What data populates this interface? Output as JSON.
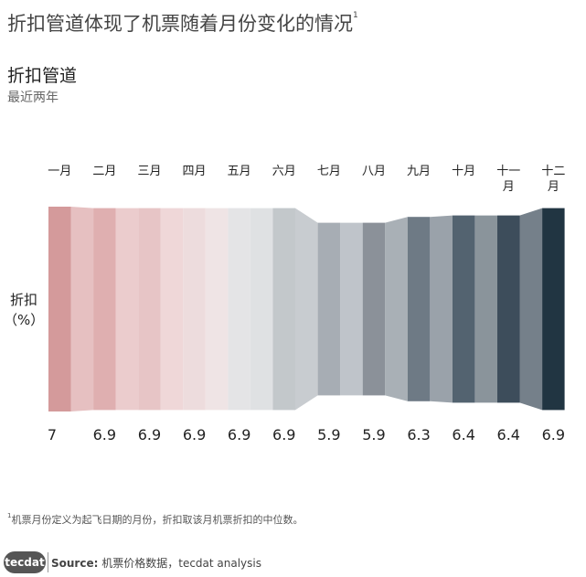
{
  "title": "折扣管道体现了机票随着月份变化的情况",
  "title_footnote_mark": "1",
  "subtitle": "折扣管道",
  "period": "最近两年",
  "ylabel_line1": "折扣",
  "ylabel_line2": "（%）",
  "footnote_mark": "1",
  "footnote_text": "机票月份定义为起飞日期的月份，折扣取该月机票折扣的中位数。",
  "logo_text": "tecdat",
  "source_label": "Source:",
  "source_text": "机票价格数据，tecdat analysis",
  "chart_data": {
    "type": "area",
    "categories": [
      "一月",
      "二月",
      "三月",
      "四月",
      "五月",
      "六月",
      "七月",
      "八月",
      "九月",
      "十月",
      "十一月",
      "十二月"
    ],
    "values": [
      7,
      6.9,
      6.9,
      6.9,
      6.9,
      6.9,
      5.9,
      5.9,
      6.3,
      6.4,
      6.4,
      6.9
    ],
    "value_labels": [
      "7",
      "6.9",
      "6.9",
      "6.9",
      "6.9",
      "6.9",
      "5.9",
      "5.9",
      "6.3",
      "6.4",
      "6.4",
      "6.9"
    ],
    "month_colors": [
      "#d49a9b",
      "#dfafb0",
      "#e7c5c6",
      "#eddcdd",
      "#e4e4e6",
      "#c3c8cb",
      "#a7adb4",
      "#8b9199",
      "#6e7a85",
      "#536370",
      "#3d4d5b",
      "#213542"
    ],
    "between_colors": [
      "#e6c0c1",
      "#ebcccd",
      "#efd7d8",
      "#efe4e5",
      "#dfe1e3",
      "#c8ccd0",
      "#bfc4ca",
      "#a9b0b6",
      "#9aa2aa",
      "#8a949b",
      "#75808a"
    ]
  }
}
